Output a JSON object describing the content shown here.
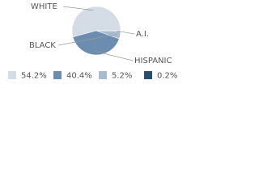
{
  "chart_data": {
    "type": "pie",
    "categories": [
      "WHITE",
      "HISPANIC",
      "BLACK",
      "A.I."
    ],
    "values": [
      54.2,
      40.4,
      5.2,
      0.2
    ],
    "value_labels": [
      "54.2%",
      "40.4%",
      "5.2%",
      "0.2%"
    ],
    "colors": [
      "#d4dce6",
      "#6d8db0",
      "#a9bbcf",
      "#2d4d6d"
    ]
  }
}
